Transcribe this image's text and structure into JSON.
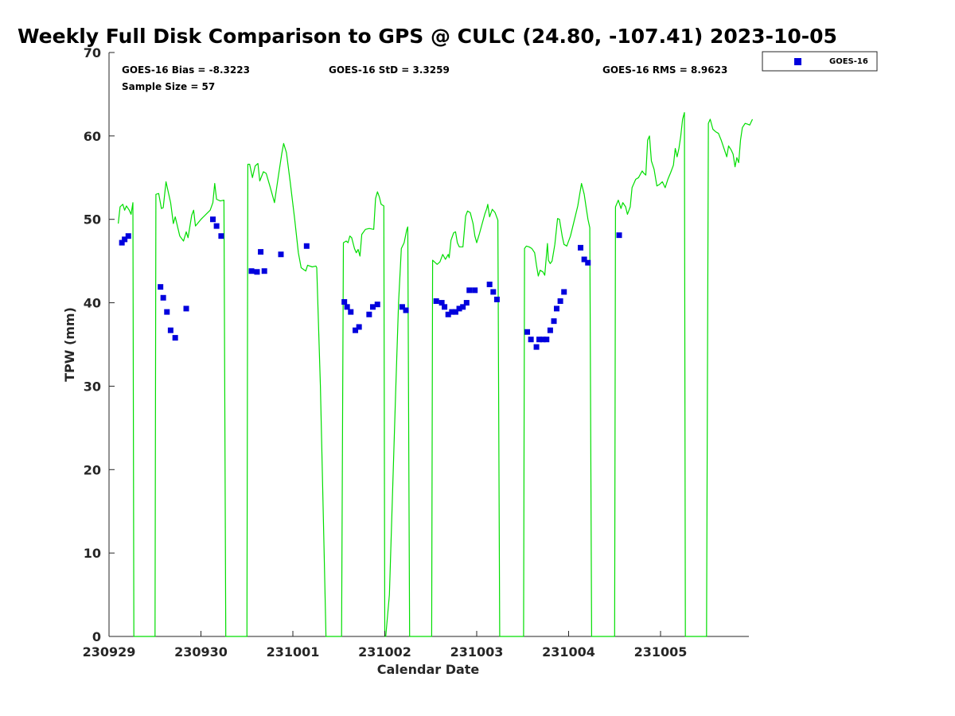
{
  "chart_data": {
    "type": "scatter",
    "title": "Weekly Full Disk Comparison to GPS @ CULC (24.80, -107.41) 2023-10-05",
    "xlabel": "Calendar Date",
    "ylabel": "TPW (mm)",
    "xlim": [
      0,
      7.02
    ],
    "ylim": [
      0,
      70
    ],
    "x_tick_values": [
      0,
      1,
      2,
      3,
      4,
      5,
      6
    ],
    "x_tick_labels": [
      "230929",
      "230930",
      "231001",
      "231002",
      "231003",
      "231004",
      "231005"
    ],
    "y_ticks": [
      0,
      10,
      20,
      30,
      40,
      50,
      60,
      70
    ],
    "grid": false,
    "legend_position": "top-right-outside",
    "stats": {
      "bias": "GOES-16 Bias = -8.3223",
      "std": "GOES-16 StD = 3.3259",
      "rms": "GOES-16 RMS = 8.9623",
      "sample": "Sample Size = 57"
    },
    "series": [
      {
        "name": "GOES-16",
        "kind": "scatter",
        "color": "#0000dd",
        "points": [
          [
            0.14,
            47.2
          ],
          [
            0.17,
            47.6
          ],
          [
            0.21,
            48.0
          ],
          [
            0.56,
            41.9
          ],
          [
            0.59,
            40.6
          ],
          [
            0.63,
            38.9
          ],
          [
            0.67,
            36.7
          ],
          [
            0.72,
            35.8
          ],
          [
            0.84,
            39.3
          ],
          [
            1.13,
            50.0
          ],
          [
            1.17,
            49.2
          ],
          [
            1.22,
            48.0
          ],
          [
            1.55,
            43.8
          ],
          [
            1.61,
            43.7
          ],
          [
            1.65,
            46.1
          ],
          [
            1.69,
            43.8
          ],
          [
            1.87,
            45.8
          ],
          [
            2.15,
            46.8
          ],
          [
            2.56,
            40.1
          ],
          [
            2.59,
            39.5
          ],
          [
            2.63,
            38.9
          ],
          [
            2.68,
            36.7
          ],
          [
            2.72,
            37.1
          ],
          [
            2.83,
            38.6
          ],
          [
            2.87,
            39.5
          ],
          [
            2.92,
            39.8
          ],
          [
            3.19,
            39.5
          ],
          [
            3.23,
            39.1
          ],
          [
            3.56,
            40.2
          ],
          [
            3.62,
            40.0
          ],
          [
            3.65,
            39.5
          ],
          [
            3.69,
            38.6
          ],
          [
            3.73,
            38.9
          ],
          [
            3.77,
            38.9
          ],
          [
            3.81,
            39.3
          ],
          [
            3.85,
            39.5
          ],
          [
            3.89,
            40.0
          ],
          [
            3.92,
            41.5
          ],
          [
            3.98,
            41.5
          ],
          [
            4.14,
            42.2
          ],
          [
            4.18,
            41.3
          ],
          [
            4.22,
            40.4
          ],
          [
            4.55,
            36.5
          ],
          [
            4.59,
            35.6
          ],
          [
            4.65,
            34.7
          ],
          [
            4.68,
            35.6
          ],
          [
            4.72,
            35.6
          ],
          [
            4.76,
            35.6
          ],
          [
            4.8,
            36.7
          ],
          [
            4.84,
            37.8
          ],
          [
            4.87,
            39.3
          ],
          [
            4.91,
            40.2
          ],
          [
            4.95,
            41.3
          ],
          [
            5.13,
            46.6
          ],
          [
            5.17,
            45.2
          ],
          [
            5.21,
            44.8
          ],
          [
            5.55,
            48.1
          ]
        ]
      },
      {
        "kind": "line",
        "color": "#00dd00",
        "points": [
          [
            0.1,
            49.5
          ],
          [
            0.12,
            51.5
          ],
          [
            0.15,
            51.8
          ],
          [
            0.17,
            51.1
          ],
          [
            0.19,
            51.6
          ],
          [
            0.22,
            51.1
          ],
          [
            0.24,
            50.6
          ],
          [
            0.26,
            52.0
          ],
          [
            0.27,
            0
          ],
          [
            0.5,
            0
          ],
          [
            0.51,
            53.0
          ],
          [
            0.54,
            53.1
          ],
          [
            0.57,
            51.3
          ],
          [
            0.59,
            51.4
          ],
          [
            0.62,
            54.5
          ],
          [
            0.67,
            52.0
          ],
          [
            0.7,
            49.5
          ],
          [
            0.72,
            50.3
          ],
          [
            0.77,
            48.0
          ],
          [
            0.81,
            47.4
          ],
          [
            0.84,
            48.5
          ],
          [
            0.86,
            47.8
          ],
          [
            0.9,
            50.5
          ],
          [
            0.92,
            51.1
          ],
          [
            0.94,
            49.2
          ],
          [
            1.0,
            50.0
          ],
          [
            1.1,
            51.1
          ],
          [
            1.13,
            52.0
          ],
          [
            1.15,
            54.3
          ],
          [
            1.17,
            52.4
          ],
          [
            1.21,
            52.2
          ],
          [
            1.25,
            52.3
          ],
          [
            1.27,
            0
          ],
          [
            1.5,
            0
          ],
          [
            1.51,
            56.6
          ],
          [
            1.53,
            56.6
          ],
          [
            1.56,
            55.0
          ],
          [
            1.59,
            56.4
          ],
          [
            1.62,
            56.7
          ],
          [
            1.64,
            54.6
          ],
          [
            1.68,
            55.7
          ],
          [
            1.71,
            55.5
          ],
          [
            1.75,
            54.0
          ],
          [
            1.8,
            52.0
          ],
          [
            1.84,
            55.0
          ],
          [
            1.88,
            57.9
          ],
          [
            1.9,
            59.1
          ],
          [
            1.93,
            58.0
          ],
          [
            1.97,
            54.6
          ],
          [
            2.02,
            50.0
          ],
          [
            2.06,
            46.0
          ],
          [
            2.09,
            44.2
          ],
          [
            2.14,
            43.8
          ],
          [
            2.16,
            44.5
          ],
          [
            2.21,
            44.3
          ],
          [
            2.25,
            44.4
          ],
          [
            2.26,
            44.2
          ],
          [
            2.3,
            30.0
          ],
          [
            2.34,
            10.0
          ],
          [
            2.36,
            0
          ],
          [
            2.53,
            0
          ],
          [
            2.55,
            47.2
          ],
          [
            2.58,
            47.4
          ],
          [
            2.6,
            47.2
          ],
          [
            2.62,
            48.0
          ],
          [
            2.64,
            47.8
          ],
          [
            2.67,
            46.5
          ],
          [
            2.69,
            46.0
          ],
          [
            2.71,
            46.4
          ],
          [
            2.73,
            45.6
          ],
          [
            2.75,
            48.2
          ],
          [
            2.79,
            48.8
          ],
          [
            2.83,
            48.9
          ],
          [
            2.88,
            48.8
          ],
          [
            2.9,
            52.5
          ],
          [
            2.92,
            53.3
          ],
          [
            2.94,
            52.7
          ],
          [
            2.96,
            51.8
          ],
          [
            2.99,
            51.6
          ],
          [
            3.0,
            0
          ],
          [
            3.01,
            0
          ],
          [
            3.05,
            5.0
          ],
          [
            3.12,
            30.0
          ],
          [
            3.15,
            40.0
          ],
          [
            3.18,
            46.5
          ],
          [
            3.21,
            47.2
          ],
          [
            3.24,
            48.8
          ],
          [
            3.25,
            49.1
          ],
          [
            3.27,
            0
          ],
          [
            3.51,
            0
          ],
          [
            3.52,
            45.1
          ],
          [
            3.54,
            44.9
          ],
          [
            3.57,
            44.6
          ],
          [
            3.6,
            44.9
          ],
          [
            3.63,
            45.8
          ],
          [
            3.66,
            45.2
          ],
          [
            3.69,
            45.8
          ],
          [
            3.7,
            45.4
          ],
          [
            3.72,
            47.5
          ],
          [
            3.75,
            48.4
          ],
          [
            3.77,
            48.5
          ],
          [
            3.79,
            47.2
          ],
          [
            3.81,
            46.7
          ],
          [
            3.85,
            46.7
          ],
          [
            3.88,
            50.4
          ],
          [
            3.9,
            51.0
          ],
          [
            3.93,
            50.8
          ],
          [
            3.96,
            49.5
          ],
          [
            3.98,
            48.0
          ],
          [
            4.0,
            47.2
          ],
          [
            4.03,
            48.3
          ],
          [
            4.06,
            49.5
          ],
          [
            4.09,
            50.7
          ],
          [
            4.11,
            51.3
          ],
          [
            4.12,
            51.8
          ],
          [
            4.14,
            50.3
          ],
          [
            4.17,
            51.2
          ],
          [
            4.2,
            50.8
          ],
          [
            4.23,
            49.9
          ],
          [
            4.25,
            0
          ],
          [
            4.51,
            0
          ],
          [
            4.52,
            46.5
          ],
          [
            4.54,
            46.8
          ],
          [
            4.57,
            46.7
          ],
          [
            4.6,
            46.5
          ],
          [
            4.63,
            46.0
          ],
          [
            4.65,
            44.5
          ],
          [
            4.67,
            43.2
          ],
          [
            4.69,
            43.9
          ],
          [
            4.72,
            43.7
          ],
          [
            4.74,
            43.3
          ],
          [
            4.77,
            47.1
          ],
          [
            4.78,
            45.1
          ],
          [
            4.8,
            44.7
          ],
          [
            4.82,
            45.0
          ],
          [
            4.85,
            47.0
          ],
          [
            4.88,
            50.1
          ],
          [
            4.9,
            50.0
          ],
          [
            4.93,
            48.0
          ],
          [
            4.95,
            47.0
          ],
          [
            4.98,
            46.8
          ],
          [
            5.02,
            48.0
          ],
          [
            5.06,
            49.8
          ],
          [
            5.1,
            51.6
          ],
          [
            5.12,
            53.0
          ],
          [
            5.14,
            54.3
          ],
          [
            5.17,
            53.0
          ],
          [
            5.19,
            51.5
          ],
          [
            5.21,
            50.0
          ],
          [
            5.23,
            49.0
          ],
          [
            5.25,
            0
          ],
          [
            5.5,
            0
          ],
          [
            5.51,
            51.5
          ],
          [
            5.54,
            52.3
          ],
          [
            5.57,
            51.3
          ],
          [
            5.59,
            52.0
          ],
          [
            5.62,
            51.5
          ],
          [
            5.64,
            50.6
          ],
          [
            5.67,
            51.5
          ],
          [
            5.69,
            53.8
          ],
          [
            5.73,
            54.8
          ],
          [
            5.76,
            55.0
          ],
          [
            5.8,
            55.8
          ],
          [
            5.82,
            55.5
          ],
          [
            5.84,
            55.3
          ],
          [
            5.86,
            59.5
          ],
          [
            5.88,
            60.0
          ],
          [
            5.9,
            57.0
          ],
          [
            5.93,
            56.0
          ],
          [
            5.96,
            54.0
          ],
          [
            5.99,
            54.2
          ],
          [
            6.02,
            54.5
          ],
          [
            6.05,
            53.8
          ],
          [
            6.08,
            54.8
          ],
          [
            6.11,
            55.6
          ],
          [
            6.14,
            56.5
          ],
          [
            6.16,
            58.5
          ],
          [
            6.18,
            57.5
          ],
          [
            6.2,
            58.5
          ],
          [
            6.22,
            60.0
          ],
          [
            6.24,
            62.0
          ],
          [
            6.26,
            62.8
          ],
          [
            6.27,
            0
          ],
          [
            6.5,
            0
          ],
          [
            6.52,
            61.5
          ],
          [
            6.54,
            62.0
          ],
          [
            6.57,
            60.8
          ],
          [
            6.6,
            60.5
          ],
          [
            6.63,
            60.3
          ],
          [
            6.66,
            59.5
          ],
          [
            6.69,
            58.5
          ],
          [
            6.72,
            57.5
          ],
          [
            6.74,
            58.8
          ],
          [
            6.77,
            58.3
          ],
          [
            6.79,
            57.8
          ],
          [
            6.81,
            56.3
          ],
          [
            6.83,
            57.4
          ],
          [
            6.85,
            56.8
          ],
          [
            6.87,
            59.5
          ],
          [
            6.89,
            61.0
          ],
          [
            6.92,
            61.5
          ],
          [
            6.95,
            61.4
          ],
          [
            6.97,
            61.3
          ],
          [
            7.0,
            62.0
          ]
        ]
      }
    ]
  }
}
